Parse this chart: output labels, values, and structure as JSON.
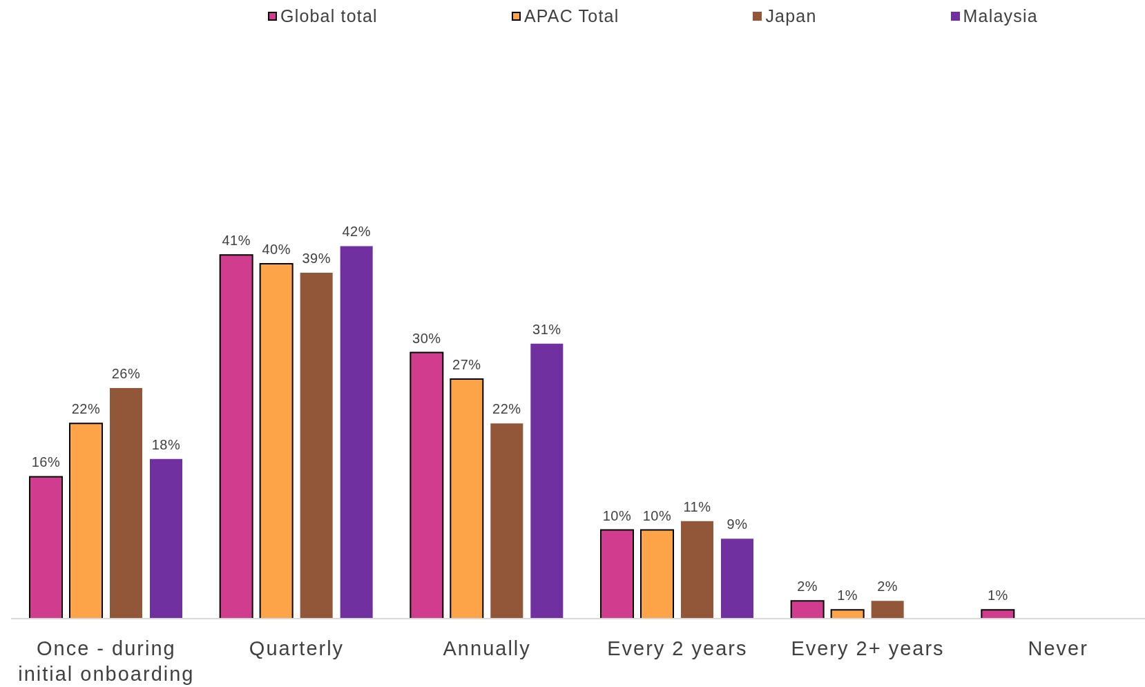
{
  "chart_data": {
    "type": "bar",
    "categories": [
      "Once - during initial onboarding",
      "Quarterly",
      "Annually",
      "Every 2 years",
      "Every 2+ years",
      "Never"
    ],
    "series": [
      {
        "name": "Global total",
        "color": "#d03d8f",
        "values": [
          16,
          41,
          30,
          10,
          2,
          1
        ],
        "value_labels": [
          "16%",
          "41%",
          "30%",
          "10%",
          "2%",
          "1%"
        ]
      },
      {
        "name": "APAC Total",
        "color": "#fda448",
        "values": [
          22,
          40,
          27,
          10,
          1,
          null
        ],
        "value_labels": [
          "22%",
          "40%",
          "27%",
          "10%",
          "1%",
          null
        ]
      },
      {
        "name": "Japan",
        "color": "#925639",
        "values": [
          26,
          39,
          22,
          11,
          2,
          null
        ],
        "value_labels": [
          "26%",
          "39%",
          "22%",
          "11%",
          "2%",
          null
        ]
      },
      {
        "name": "Malaysia",
        "color": "#7030a0",
        "values": [
          18,
          42,
          31,
          9,
          null,
          null
        ],
        "value_labels": [
          "18%",
          "42%",
          "31%",
          "9%",
          null,
          null
        ]
      }
    ],
    "legend": "top"
  }
}
